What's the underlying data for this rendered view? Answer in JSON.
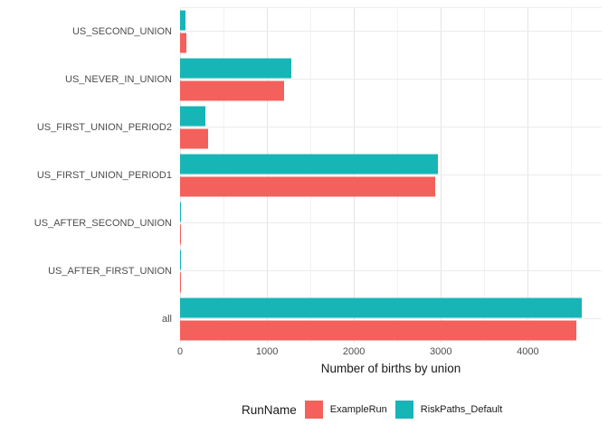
{
  "chart_data": {
    "type": "bar",
    "orientation": "horizontal",
    "title": "",
    "xlabel": "Number of births by union",
    "ylabel": "",
    "categories": [
      "US_SECOND_UNION",
      "US_NEVER_IN_UNION",
      "US_FIRST_UNION_PERIOD2",
      "US_FIRST_UNION_PERIOD1",
      "US_AFTER_SECOND_UNION",
      "US_AFTER_FIRST_UNION",
      "all"
    ],
    "series": [
      {
        "name": "RiskPaths_Default",
        "color": "#17b5b6",
        "values": [
          60,
          1280,
          290,
          2970,
          15,
          15,
          4620
        ]
      },
      {
        "name": "ExampleRun",
        "color": "#f4605c",
        "values": [
          75,
          1200,
          320,
          2940,
          15,
          15,
          4555
        ]
      }
    ],
    "row_order_top_to_bottom": [
      "RiskPaths_Default",
      "ExampleRun"
    ],
    "x_ticks": [
      0,
      1000,
      2000,
      3000,
      4000
    ],
    "x_minor_ticks": [
      500,
      1500,
      2500,
      3500,
      4500
    ],
    "xlim": [
      0,
      4850
    ],
    "grid": "major-and-minor-vertical, major-horizontal-at-category",
    "legend_position": "bottom"
  },
  "axis": {
    "x_title": "Number of births by union",
    "x_tick_labels": [
      "0",
      "1000",
      "2000",
      "3000",
      "4000"
    ]
  },
  "legend": {
    "title": "RunName",
    "items": [
      {
        "label": "ExampleRun",
        "color": "#f4605c"
      },
      {
        "label": "RiskPaths_Default",
        "color": "#17b5b6"
      }
    ]
  },
  "colors": {
    "examplerun_red": "#f4605c",
    "riskpaths_teal": "#17b5b6",
    "grid_major": "#e5e5e5",
    "grid_minor": "#f2f2f2",
    "grid_horizontal": "#ebebeb",
    "axis_text": "#4d4d4d",
    "title_text": "#1a1a1a",
    "background": "#ffffff"
  }
}
